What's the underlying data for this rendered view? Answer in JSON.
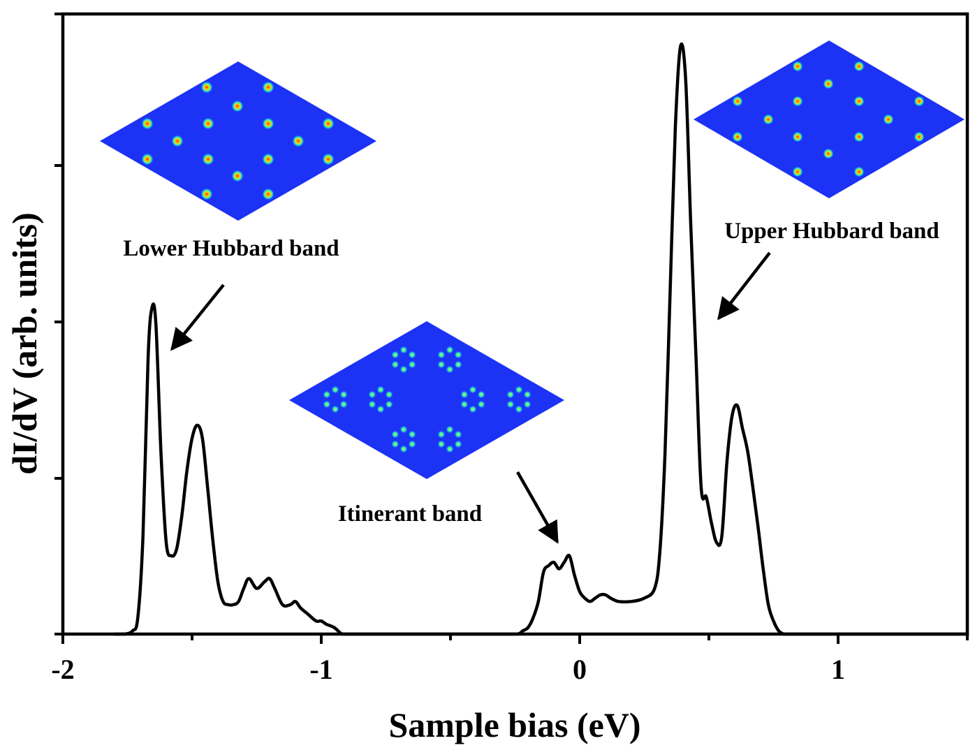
{
  "chart_data": {
    "type": "line",
    "title": "",
    "xlabel": "Sample bias (eV)",
    "ylabel": "dI/dV (arb. units)",
    "xlim": [
      -2,
      1.5
    ],
    "ylim": [
      0,
      1.9
    ],
    "x_ticks": [
      -2,
      -1,
      0,
      1
    ],
    "x_tick_labels": [
      "-2",
      "-1",
      "0",
      "1"
    ],
    "y_tick_labels_shown": false,
    "grid": false,
    "legend": "none",
    "series": [
      {
        "color": "#000000",
        "x": [
          -1.8,
          -1.76,
          -1.73,
          -1.71,
          -1.69,
          -1.67,
          -1.655,
          -1.64,
          -1.62,
          -1.6,
          -1.58,
          -1.56,
          -1.54,
          -1.52,
          -1.5,
          -1.48,
          -1.46,
          -1.44,
          -1.42,
          -1.4,
          -1.38,
          -1.36,
          -1.34,
          -1.32,
          -1.3,
          -1.28,
          -1.25,
          -1.22,
          -1.2,
          -1.18,
          -1.15,
          -1.12,
          -1.1,
          -1.08,
          -1.05,
          -1.02,
          -1.0,
          -0.98,
          -0.95,
          -0.92,
          -0.9,
          -0.88,
          -0.85,
          -0.82,
          -0.8,
          -0.78,
          -0.76,
          -0.73,
          -0.7,
          -0.5,
          -0.3,
          -0.24,
          -0.22,
          -0.2,
          -0.18,
          -0.16,
          -0.14,
          -0.12,
          -0.1,
          -0.08,
          -0.06,
          -0.04,
          -0.02,
          0.0,
          0.02,
          0.04,
          0.06,
          0.08,
          0.1,
          0.12,
          0.15,
          0.2,
          0.25,
          0.29,
          0.31,
          0.33,
          0.35,
          0.37,
          0.39,
          0.41,
          0.43,
          0.45,
          0.47,
          0.49,
          0.51,
          0.53,
          0.55,
          0.57,
          0.59,
          0.61,
          0.63,
          0.65,
          0.67,
          0.69,
          0.71,
          0.73,
          0.75,
          0.77,
          0.79,
          0.81,
          0.83,
          0.85,
          0.88,
          0.95,
          1.1,
          1.3,
          1.5
        ],
        "y": [
          0.0,
          0.0,
          0.01,
          0.05,
          0.3,
          0.85,
          1.0,
          0.95,
          0.55,
          0.28,
          0.24,
          0.26,
          0.36,
          0.5,
          0.6,
          0.64,
          0.6,
          0.45,
          0.29,
          0.16,
          0.1,
          0.09,
          0.09,
          0.1,
          0.14,
          0.17,
          0.14,
          0.16,
          0.17,
          0.14,
          0.09,
          0.09,
          0.1,
          0.08,
          0.06,
          0.04,
          0.04,
          0.03,
          0.02,
          0.0,
          0.0,
          0.0,
          0.0,
          0.0,
          0.0,
          0.0,
          0.0,
          0.0,
          0.0,
          0.0,
          0.0,
          0.0,
          0.01,
          0.02,
          0.05,
          0.1,
          0.19,
          0.21,
          0.22,
          0.2,
          0.22,
          0.24,
          0.18,
          0.13,
          0.11,
          0.1,
          0.11,
          0.12,
          0.12,
          0.11,
          0.1,
          0.1,
          0.11,
          0.14,
          0.25,
          0.55,
          1.05,
          1.55,
          1.8,
          1.7,
          1.25,
          0.85,
          0.45,
          0.42,
          0.34,
          0.28,
          0.3,
          0.53,
          0.67,
          0.7,
          0.63,
          0.56,
          0.45,
          0.33,
          0.2,
          0.09,
          0.04,
          0.01,
          0.0,
          0.0,
          0.0,
          0.0,
          0.0,
          0.0,
          0.0,
          0.0,
          0.0
        ]
      }
    ],
    "annotations": [
      {
        "text": "Lower Hubbard band"
      },
      {
        "text": "Itinerant band"
      },
      {
        "text": "Upper Hubbard band"
      }
    ]
  }
}
